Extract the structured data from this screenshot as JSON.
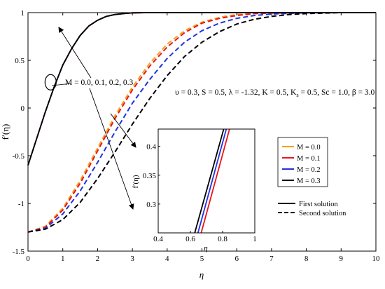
{
  "chart_data": {
    "type": "line",
    "xlabel": "η",
    "ylabel": "f′(η)",
    "xlim": [
      0,
      10
    ],
    "ylim": [
      -1.5,
      1
    ],
    "xticks": [
      "0",
      "1",
      "2",
      "3",
      "4",
      "5",
      "6",
      "7",
      "8",
      "9",
      "10"
    ],
    "yticks": [
      "1",
      "0.5",
      "0",
      "-0.5",
      "-1",
      "-1.5"
    ],
    "grid": false,
    "series": [
      {
        "name": "M = 0.0",
        "color": "#f5a01a",
        "style": "solid",
        "solution": "first",
        "x": [
          0,
          0.25,
          0.5,
          0.75,
          1,
          1.25,
          1.5,
          1.75,
          2,
          2.25,
          2.5,
          2.75,
          3,
          3.5,
          4,
          5,
          6,
          8,
          10
        ],
        "y": [
          -0.6,
          -0.32,
          -0.04,
          0.22,
          0.45,
          0.62,
          0.76,
          0.86,
          0.92,
          0.96,
          0.98,
          0.99,
          0.998,
          1,
          1,
          1,
          1,
          1,
          1
        ]
      },
      {
        "name": "M = 0.1",
        "color": "#e8161b",
        "style": "solid",
        "solution": "first",
        "x": [
          0,
          0.25,
          0.5,
          0.75,
          1,
          1.25,
          1.5,
          1.75,
          2,
          2.25,
          2.5,
          2.75,
          3,
          3.5,
          4,
          5,
          6,
          8,
          10
        ],
        "y": [
          -0.6,
          -0.32,
          -0.04,
          0.22,
          0.45,
          0.62,
          0.76,
          0.86,
          0.92,
          0.96,
          0.98,
          0.99,
          0.998,
          1,
          1,
          1,
          1,
          1,
          1
        ]
      },
      {
        "name": "M = 0.2",
        "color": "#1f33e0",
        "style": "solid",
        "solution": "first",
        "x": [
          0,
          0.25,
          0.5,
          0.75,
          1,
          1.25,
          1.5,
          1.75,
          2,
          2.25,
          2.5,
          2.75,
          3,
          3.5,
          4,
          5,
          6,
          8,
          10
        ],
        "y": [
          -0.6,
          -0.32,
          -0.04,
          0.22,
          0.45,
          0.62,
          0.76,
          0.86,
          0.92,
          0.96,
          0.98,
          0.99,
          0.998,
          1,
          1,
          1,
          1,
          1,
          1
        ]
      },
      {
        "name": "M = 0.3",
        "color": "#000000",
        "style": "solid",
        "solution": "first",
        "x": [
          0,
          0.25,
          0.5,
          0.75,
          1,
          1.25,
          1.5,
          1.75,
          2,
          2.25,
          2.5,
          2.75,
          3,
          3.5,
          4,
          5,
          6,
          8,
          10
        ],
        "y": [
          -0.6,
          -0.32,
          -0.04,
          0.22,
          0.45,
          0.62,
          0.76,
          0.86,
          0.92,
          0.96,
          0.98,
          0.99,
          0.998,
          1,
          1,
          1,
          1,
          1,
          1
        ]
      },
      {
        "name": "M = 0.0",
        "color": "#f5a01a",
        "style": "dashed",
        "solution": "second",
        "x": [
          0,
          0.5,
          1,
          1.5,
          2,
          2.5,
          3,
          3.5,
          4,
          4.5,
          5,
          5.5,
          6,
          6.5,
          7,
          8,
          9,
          10
        ],
        "y": [
          -1.3,
          -1.24,
          -1.05,
          -0.76,
          -0.42,
          -0.08,
          0.22,
          0.47,
          0.67,
          0.81,
          0.9,
          0.95,
          0.98,
          0.99,
          0.996,
          1,
          1,
          1
        ]
      },
      {
        "name": "M = 0.1",
        "color": "#e8161b",
        "style": "dashed",
        "solution": "second",
        "x": [
          0,
          0.5,
          1,
          1.5,
          2,
          2.5,
          3,
          3.5,
          4,
          4.5,
          5,
          5.5,
          6,
          6.5,
          7,
          8,
          9,
          10
        ],
        "y": [
          -1.3,
          -1.25,
          -1.07,
          -0.79,
          -0.45,
          -0.11,
          0.19,
          0.44,
          0.64,
          0.79,
          0.89,
          0.94,
          0.97,
          0.99,
          0.995,
          1,
          1,
          1
        ]
      },
      {
        "name": "M = 0.2",
        "color": "#1f33e0",
        "style": "dashed",
        "solution": "second",
        "x": [
          0,
          0.5,
          1,
          1.5,
          2,
          2.5,
          3,
          3.5,
          4,
          4.5,
          5,
          5.5,
          6,
          6.5,
          7,
          8,
          9,
          10
        ],
        "y": [
          -1.3,
          -1.26,
          -1.11,
          -0.87,
          -0.57,
          -0.25,
          0.05,
          0.3,
          0.52,
          0.69,
          0.81,
          0.89,
          0.94,
          0.97,
          0.985,
          0.998,
          1,
          1
        ]
      },
      {
        "name": "M = 0.3",
        "color": "#000000",
        "style": "dashed",
        "solution": "second",
        "x": [
          0,
          0.5,
          1,
          1.5,
          2,
          2.5,
          3,
          3.5,
          4,
          4.5,
          5,
          5.5,
          6,
          6.5,
          7,
          7.5,
          8,
          9,
          10
        ],
        "y": [
          -1.3,
          -1.27,
          -1.17,
          -0.99,
          -0.74,
          -0.46,
          -0.17,
          0.1,
          0.34,
          0.54,
          0.69,
          0.8,
          0.88,
          0.93,
          0.96,
          0.98,
          0.99,
          1,
          1
        ]
      }
    ],
    "annotations": {
      "m_values": "M = 0.0, 0.1, 0.2, 0.3",
      "params_prefix": "υ = 0.3, S = 0.5, λ = -1.32, K = 0.5, K",
      "params_sub": "s",
      "params_suffix": " = 0.5, Sc = 1.0, β = 3.0",
      "circle_at": {
        "x": 0.65,
        "y": 0.27
      }
    },
    "legend": {
      "placement": "right",
      "colors": [
        {
          "label": "M = 0.0",
          "color": "#f5a01a"
        },
        {
          "label": "M = 0.1",
          "color": "#e8161b"
        },
        {
          "label": "M = 0.2",
          "color": "#1f33e0"
        },
        {
          "label": "M = 0.3",
          "color": "#000000"
        }
      ],
      "styles": [
        {
          "label": "First solution",
          "style": "solid"
        },
        {
          "label": "Second solution",
          "style": "dashed"
        }
      ]
    },
    "inset": {
      "xlabel": "η",
      "ylabel": "f′(η)",
      "xlim": [
        0.4,
        1.0
      ],
      "ylim": [
        0.25,
        0.43
      ],
      "xticks": [
        "0.4",
        "0.6",
        "0.8",
        "1"
      ],
      "yticks": [
        "0.4",
        "0.35",
        "0.3"
      ],
      "series": [
        {
          "name": "M = 0.3",
          "color": "#000000",
          "x": [
            0.627,
            0.807
          ],
          "y": [
            0.25,
            0.43
          ]
        },
        {
          "name": "M = 0.2",
          "color": "#1f33e0",
          "x": [
            0.647,
            0.823
          ],
          "y": [
            0.25,
            0.43
          ]
        },
        {
          "name": "M = 0.1",
          "color": "#e8161b",
          "x": [
            0.667,
            0.843
          ],
          "y": [
            0.25,
            0.43
          ]
        }
      ]
    }
  }
}
